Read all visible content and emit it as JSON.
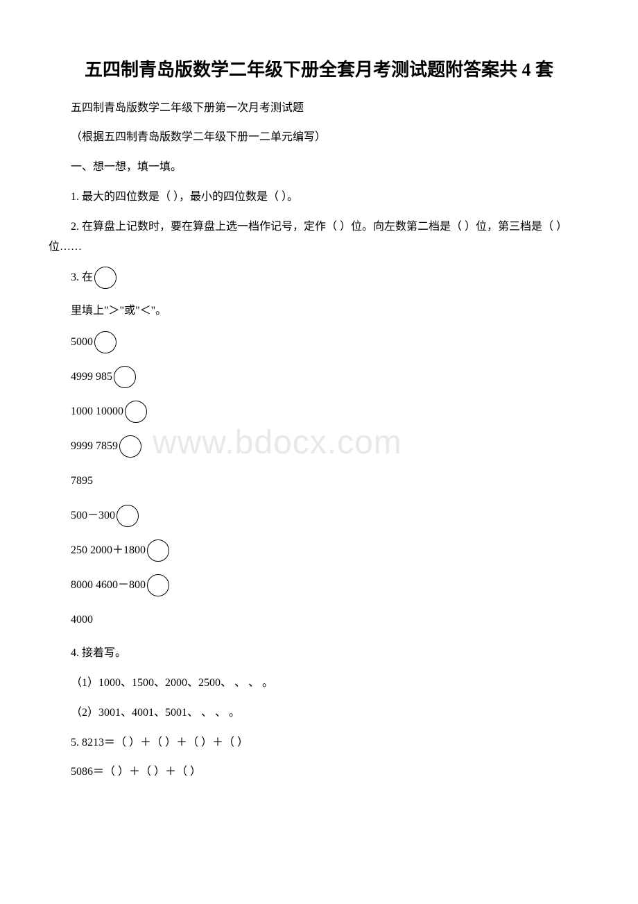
{
  "title": "五四制青岛版数学二年级下册全套月考测试题附答案共 4 套",
  "subtitle": "五四制青岛版数学二年级下册第一次月考测试题",
  "note": "（根据五四制青岛版数学二年级下册一二单元编写）",
  "section1": "一、想一想，填一填。",
  "q1": "1. 最大的四位数是（ ），最小的四位数是（ ）。",
  "q2": "2. 在算盘上记数时，要在算盘上选一档作记号，定作（ ）位。向左数第二档是（ ）位，第三档是（  ）位……",
  "q3_prefix": "3. 在",
  "q3_suffix": "里填上\"＞\"或\"＜\"。",
  "formulas": {
    "f1": "5000",
    "f2a": "4999 985",
    "f3a": "1000  10000",
    "f4a": "9999  7859",
    "f5": "7895",
    "f6a": "500－300",
    "f7a": "250   2000＋1800",
    "f8a": "8000   4600－800",
    "f9": "4000"
  },
  "q4": "4. 接着写。",
  "q4_1": "（1）1000、1500、2000、2500、 、 、   。",
  "q4_2": "（2）3001、4001、5001、 、 、   。",
  "q5_1": "5. 8213＝（  ）＋（  ）＋（  ）＋（  ）",
  "q5_2": " 5086＝（  ）＋（  ）＋（  ）",
  "watermark": "www.bdocx.com",
  "colors": {
    "text": "#000000",
    "background": "#ffffff",
    "watermark": "#e8e8e8"
  },
  "typography": {
    "title_fontsize": 26,
    "body_fontsize": 16,
    "watermark_fontsize": 48
  }
}
